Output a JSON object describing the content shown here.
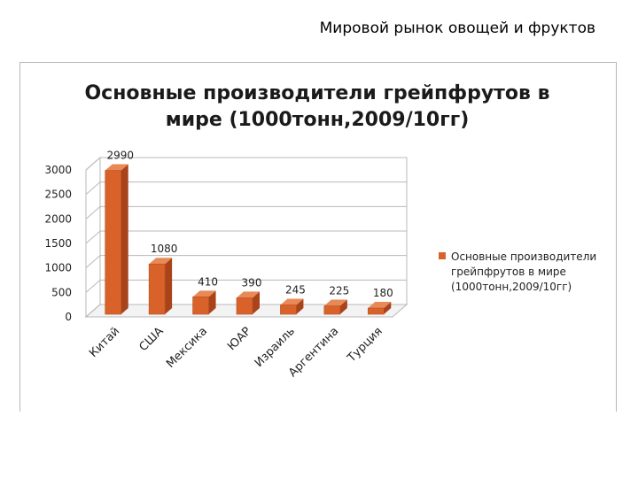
{
  "page_title": "Мировой рынок овощей и фруктов",
  "colors": {
    "bar_front": "#d9622b",
    "bar_side": "#a9431a",
    "bar_top": "#e88a58",
    "grid": "#b8b8b8",
    "wall": "#ffffff"
  },
  "chart_data": {
    "type": "bar",
    "title_lines": [
      "Основные производители грейпфрутов в",
      "мире (1000тонн,2009/10гг)"
    ],
    "categories": [
      "Китай",
      "США",
      "Мексика",
      "ЮАР",
      "Израиль",
      "Аргентина",
      "Турция"
    ],
    "series": [
      {
        "name": "Основные производители грейпфрутов в мире (1000тонн,2009/10гг)",
        "legend_lines": [
          "Основные производители",
          "грейпфрутов в мире",
          "(1000тонн,2009/10гг)"
        ],
        "values": [
          2990,
          1080,
          410,
          390,
          245,
          225,
          180
        ],
        "data_labels": [
          "2990",
          "1080",
          "410",
          "390",
          "245",
          "225",
          "180"
        ]
      }
    ],
    "y_ticks": [
      "0",
      "500",
      "1000",
      "1500",
      "2000",
      "2500",
      "3000"
    ],
    "ylim": [
      0,
      3000
    ],
    "grid": true,
    "legend_position": "right",
    "three_d": true
  }
}
